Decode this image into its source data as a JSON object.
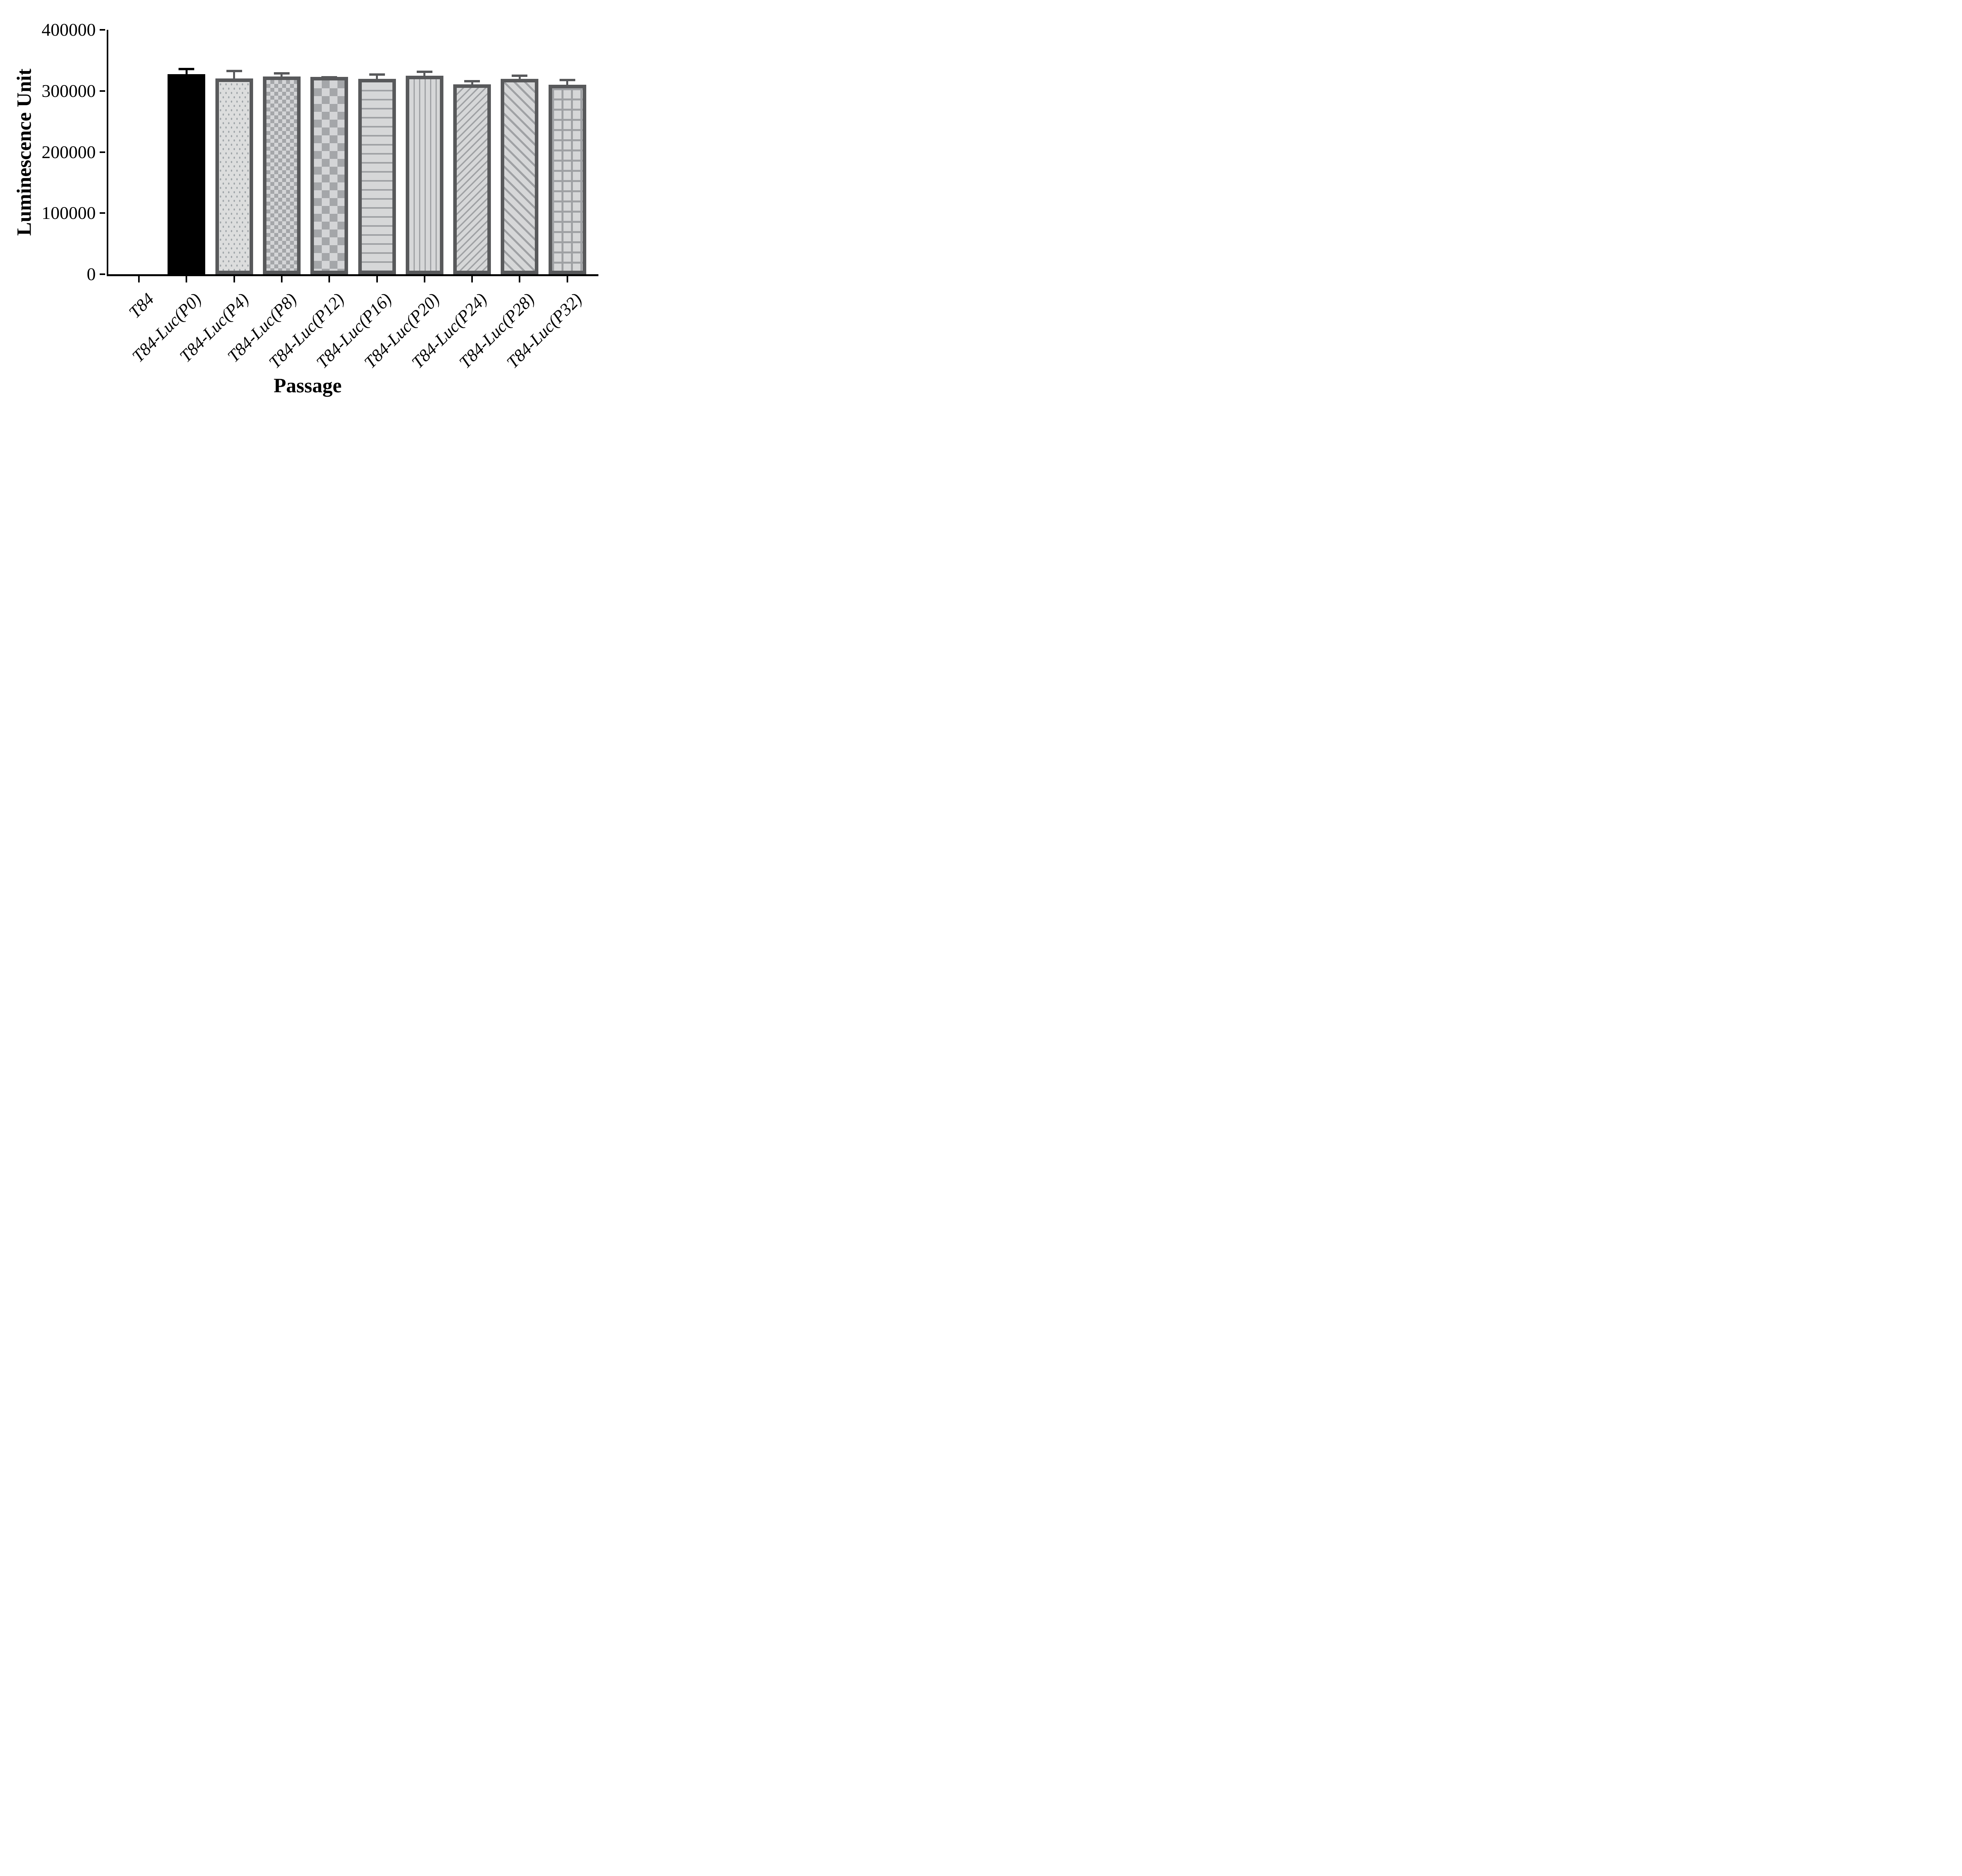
{
  "chart_data": {
    "type": "bar",
    "title": "",
    "xlabel": "Passage",
    "ylabel": "Luminescence Unit",
    "ylim": [
      0,
      400000
    ],
    "yticks": [
      0,
      100000,
      200000,
      300000,
      400000
    ],
    "ytick_labels": [
      "0",
      "100000",
      "200000",
      "300000",
      "400000"
    ],
    "grid": false,
    "legend": "none",
    "categories": [
      "T84",
      "T84-Luc(P0)",
      "T84-Luc(P4)",
      "T84-Luc(P8)",
      "T84-Luc(P12)",
      "T84-Luc(P16)",
      "T84-Luc(P20)",
      "T84-Luc(P24)",
      "T84-Luc(P28)",
      "T84-Luc(P32)"
    ],
    "series": [
      {
        "name": "Luminescence Unit",
        "values": [
          0,
          327500,
          320500,
          323500,
          323000,
          320000,
          325000,
          311000,
          320000,
          310000
        ],
        "errors_sd": [
          0,
          10000,
          14000,
          7000,
          1000,
          9000,
          8500,
          7000,
          7000,
          10000
        ]
      }
    ],
    "error_bar_style": "upper SD whisker with cap; T84 has no bar; T84-Luc(P12) error bar too small to be visible",
    "bar_patterns": [
      "none",
      "solid-black",
      "dots",
      "checker-small",
      "checker-large",
      "horizontal-lines",
      "vertical-lines",
      "diagonal-up",
      "diagonal-down",
      "grid"
    ],
    "colors": {
      "background": "#ffffff",
      "axis": "#000000",
      "solid_bar": "#000000",
      "bar_border": "#58595b",
      "bar_fill_light": "#d6d7d8",
      "pattern_gray": "#9fa1a4",
      "error_bar_gray": "#58595b",
      "error_bar_black": "#000000"
    }
  }
}
